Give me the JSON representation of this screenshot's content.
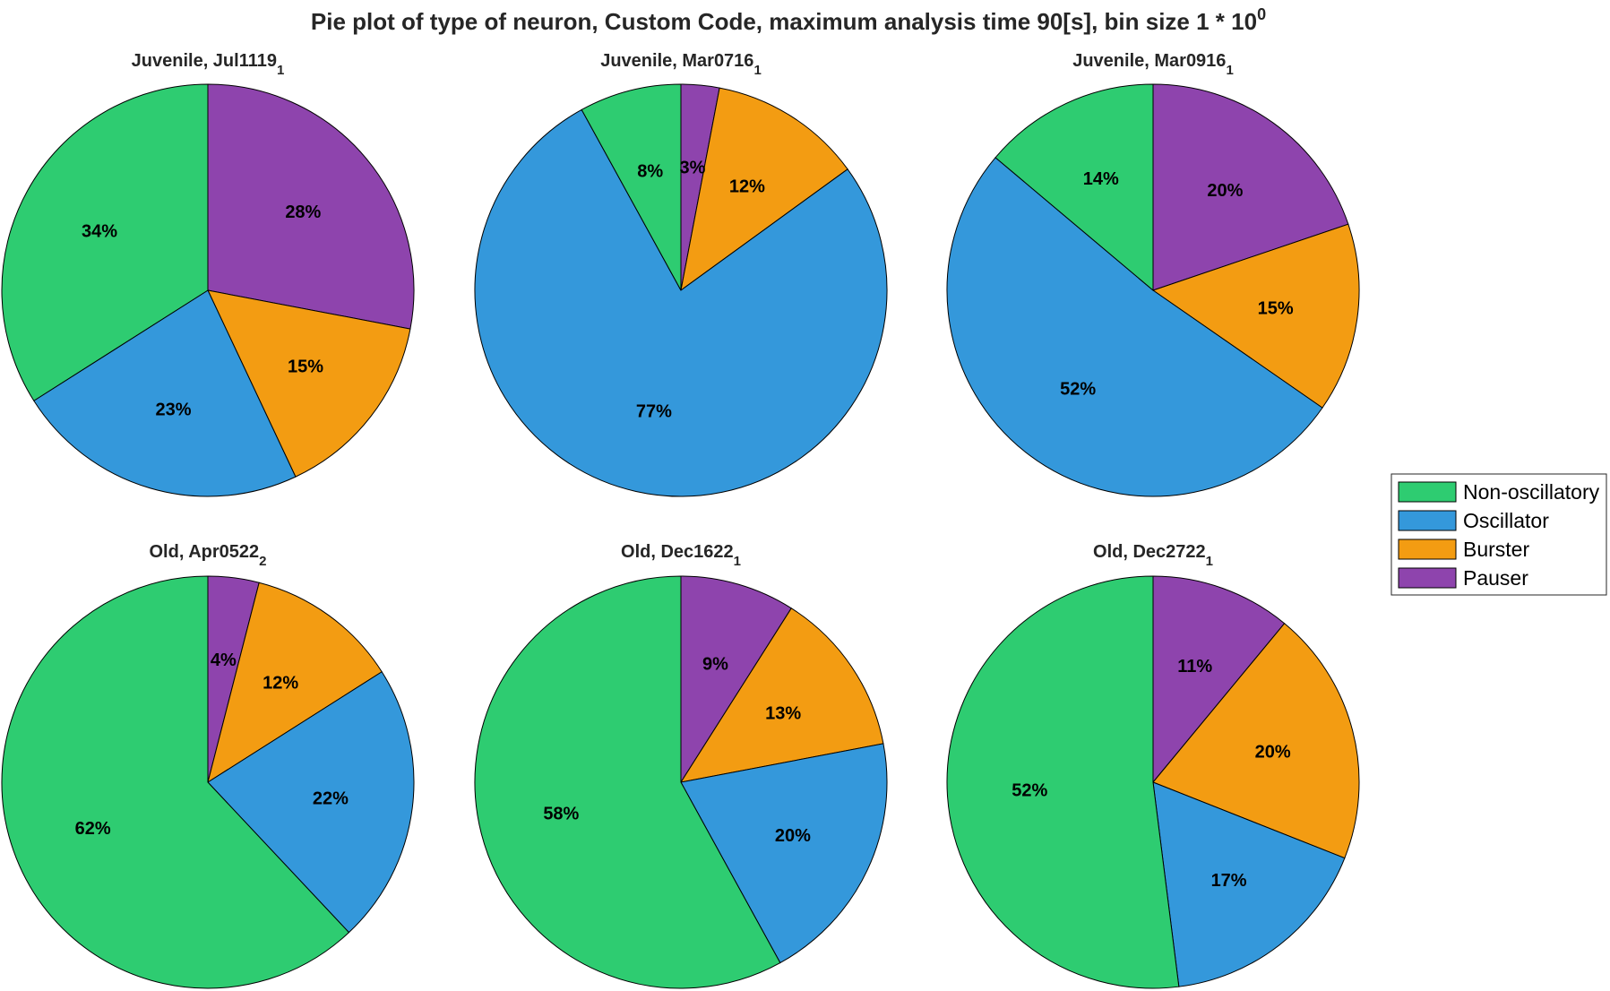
{
  "figure_title": {
    "text": "Pie plot of type of neuron, Custom Code, maximum analysis time 90[s], bin size 1 * 10",
    "superscript": "0"
  },
  "legend": {
    "placement": "right",
    "entries": [
      {
        "label": "Non-oscillatory",
        "color": "#2ecc71"
      },
      {
        "label": "Oscillator",
        "color": "#3498db"
      },
      {
        "label": "Burster",
        "color": "#f39c12"
      },
      {
        "label": "Pauser",
        "color": "#8e44ad"
      }
    ]
  },
  "chart_data": [
    {
      "type": "pie",
      "title": "Juvenile, Jul1119",
      "title_subscript": "1",
      "slices": [
        {
          "category": "Pauser",
          "value": 28,
          "label": "28%"
        },
        {
          "category": "Burster",
          "value": 15,
          "label": "15%"
        },
        {
          "category": "Oscillator",
          "value": 23,
          "label": "23%"
        },
        {
          "category": "Non-oscillatory",
          "value": 34,
          "label": "34%"
        }
      ]
    },
    {
      "type": "pie",
      "title": "Juvenile, Mar0716",
      "title_subscript": "1",
      "slices": [
        {
          "category": "Pauser",
          "value": 3,
          "label": "3%"
        },
        {
          "category": "Burster",
          "value": 12,
          "label": "12%"
        },
        {
          "category": "Oscillator",
          "value": 77,
          "label": "77%"
        },
        {
          "category": "Non-oscillatory",
          "value": 8,
          "label": "8%"
        }
      ]
    },
    {
      "type": "pie",
      "title": "Juvenile, Mar0916",
      "title_subscript": "1",
      "slices": [
        {
          "category": "Pauser",
          "value": 20,
          "label": "20%"
        },
        {
          "category": "Burster",
          "value": 15,
          "label": "15%"
        },
        {
          "category": "Oscillator",
          "value": 52,
          "label": "52%"
        },
        {
          "category": "Non-oscillatory",
          "value": 14,
          "label": "14%"
        }
      ]
    },
    {
      "type": "pie",
      "title": "Old, Apr0522",
      "title_subscript": "2",
      "slices": [
        {
          "category": "Pauser",
          "value": 4,
          "label": "4%"
        },
        {
          "category": "Burster",
          "value": 12,
          "label": "12%"
        },
        {
          "category": "Oscillator",
          "value": 22,
          "label": "22%"
        },
        {
          "category": "Non-oscillatory",
          "value": 62,
          "label": "62%"
        }
      ]
    },
    {
      "type": "pie",
      "title": "Old, Dec1622",
      "title_subscript": "1",
      "slices": [
        {
          "category": "Pauser",
          "value": 9,
          "label": "9%"
        },
        {
          "category": "Burster",
          "value": 13,
          "label": "13%"
        },
        {
          "category": "Oscillator",
          "value": 20,
          "label": "20%"
        },
        {
          "category": "Non-oscillatory",
          "value": 58,
          "label": "58%"
        }
      ]
    },
    {
      "type": "pie",
      "title": "Old, Dec2722",
      "title_subscript": "1",
      "slices": [
        {
          "category": "Pauser",
          "value": 11,
          "label": "11%"
        },
        {
          "category": "Burster",
          "value": 20,
          "label": "20%"
        },
        {
          "category": "Oscillator",
          "value": 17,
          "label": "17%"
        },
        {
          "category": "Non-oscillatory",
          "value": 52,
          "label": "52%"
        }
      ]
    }
  ]
}
